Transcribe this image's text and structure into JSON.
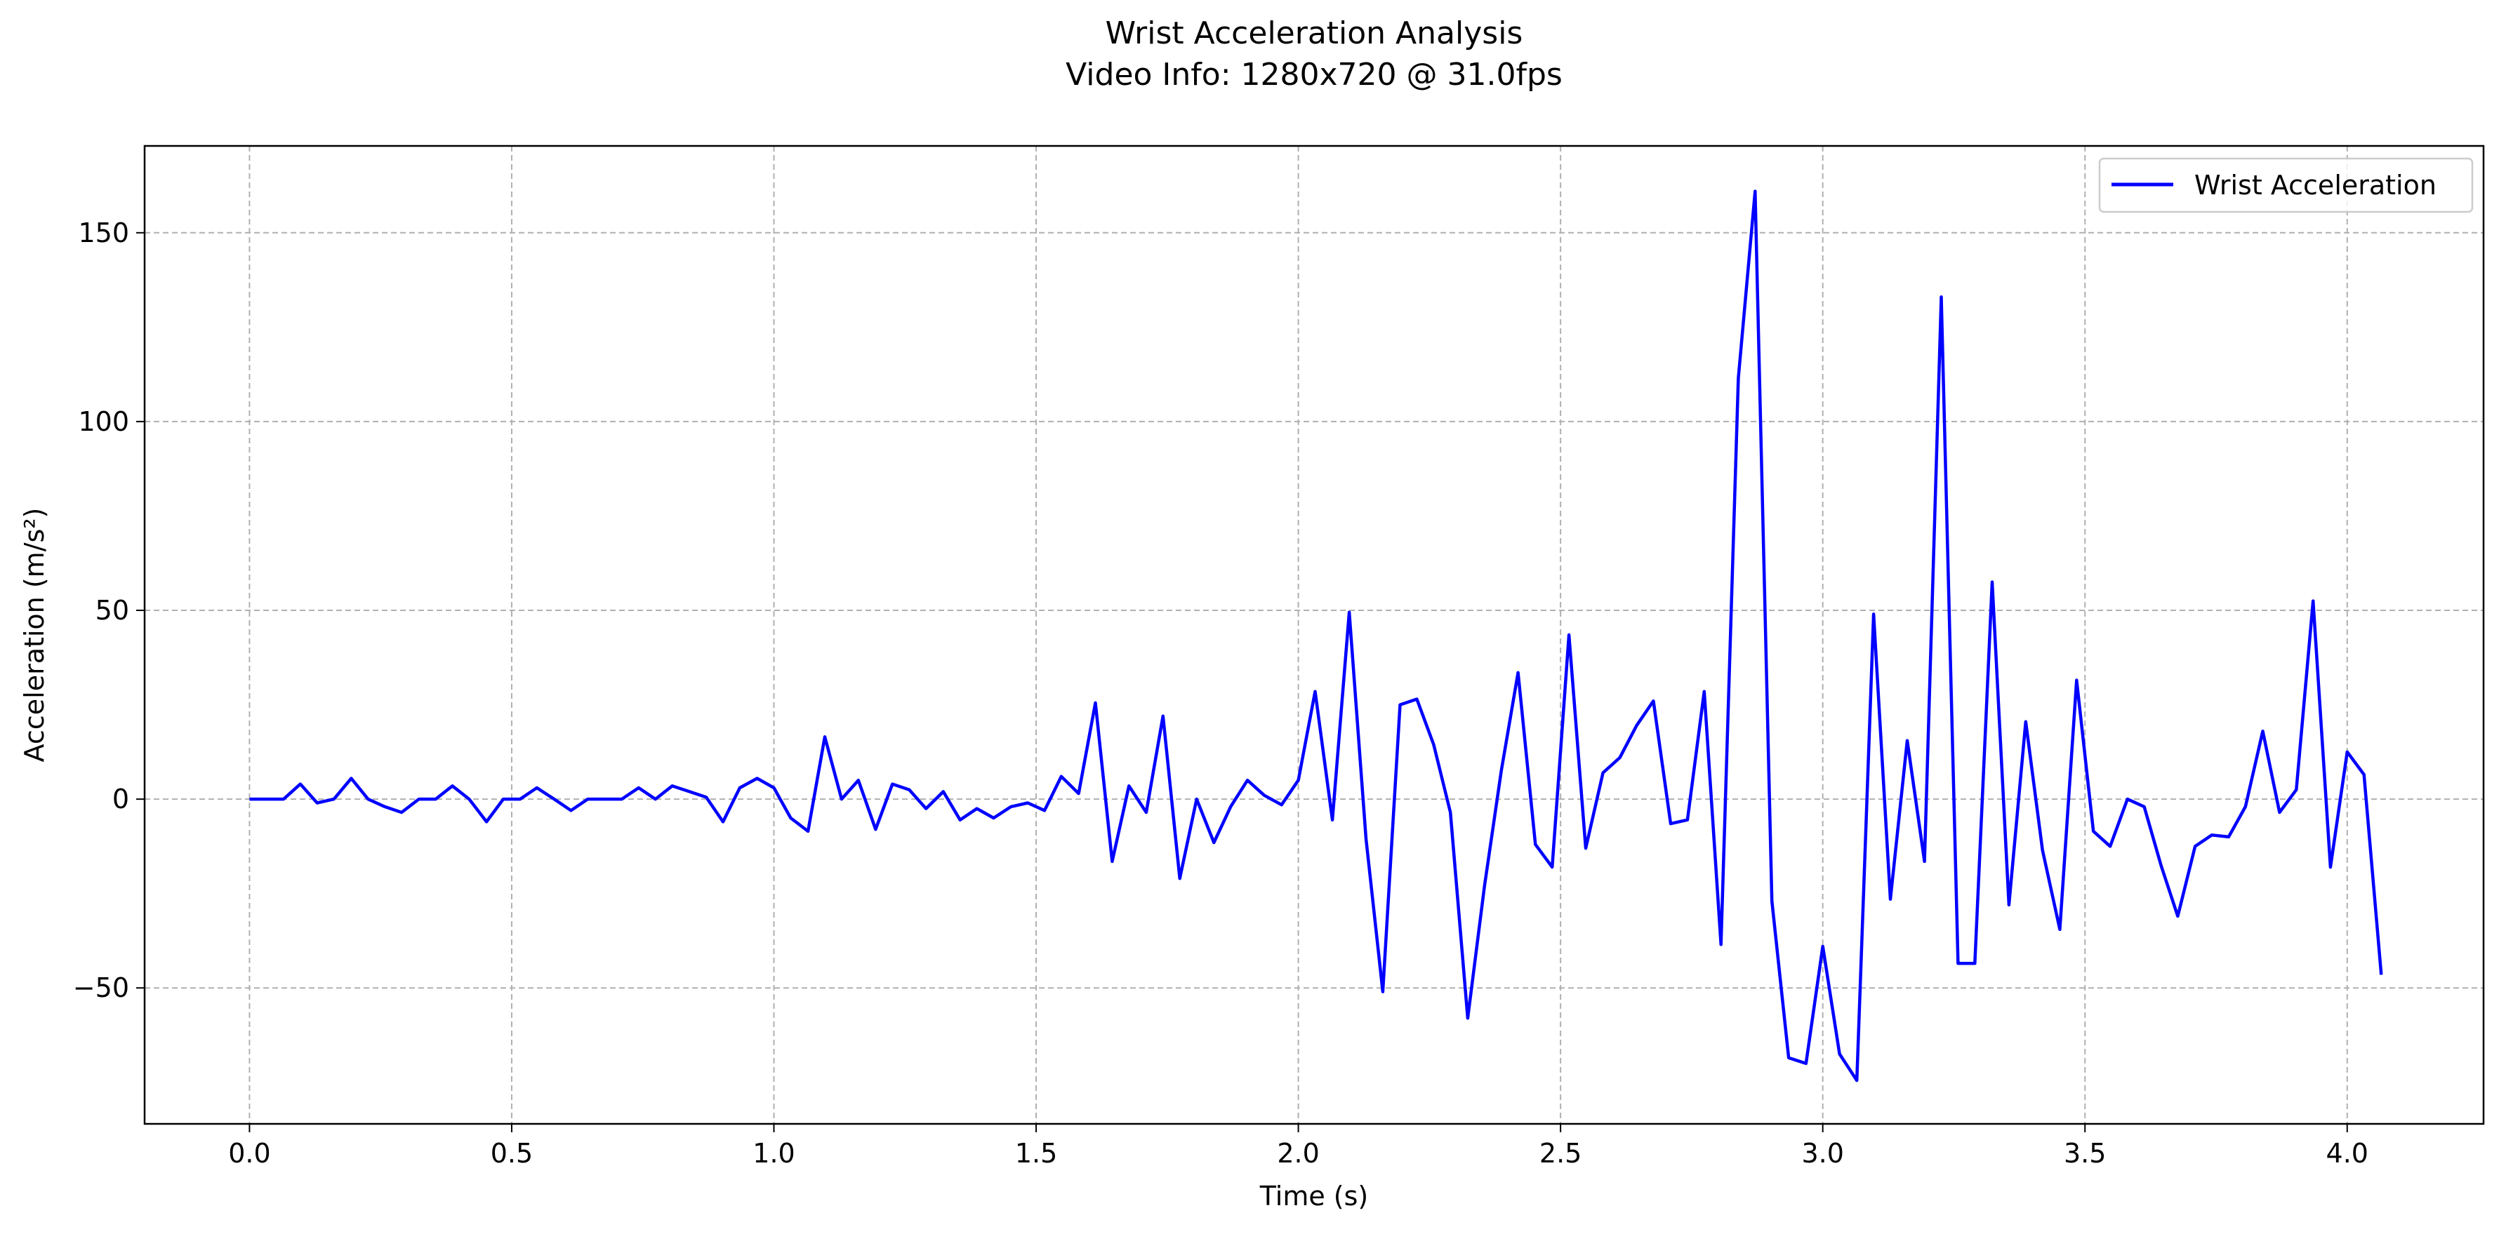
{
  "chart_data": {
    "type": "line",
    "title": "Wrist Acceleration Analysis",
    "subtitle": "Video Info: 1280x720 @ 31.0fps",
    "xlabel": "Time (s)",
    "ylabel": "Acceleration (m/s²)",
    "xlim": [
      -0.2,
      4.26
    ],
    "ylim": [
      -86,
      173
    ],
    "xticks": [
      0.0,
      0.5,
      1.0,
      1.5,
      2.0,
      2.5,
      3.0,
      3.5,
      4.0
    ],
    "xtick_labels": [
      "0.0",
      "0.5",
      "1.0",
      "1.5",
      "2.0",
      "2.5",
      "3.0",
      "3.5",
      "4.0"
    ],
    "yticks": [
      -50,
      0,
      50,
      100,
      150
    ],
    "ytick_labels": [
      "−50",
      "0",
      "50",
      "100",
      "150"
    ],
    "grid": true,
    "legend_position": "upper right",
    "line_color": "#0000ff",
    "grid_color": "#b0b0b0",
    "series": [
      {
        "name": "Wrist Acceleration",
        "x": [
          0.0,
          0.032,
          0.065,
          0.097,
          0.129,
          0.161,
          0.194,
          0.226,
          0.258,
          0.29,
          0.323,
          0.355,
          0.387,
          0.419,
          0.452,
          0.484,
          0.516,
          0.548,
          0.581,
          0.613,
          0.645,
          0.677,
          0.71,
          0.742,
          0.774,
          0.806,
          0.839,
          0.871,
          0.903,
          0.935,
          0.968,
          1.0,
          1.032,
          1.065,
          1.097,
          1.129,
          1.161,
          1.194,
          1.226,
          1.258,
          1.29,
          1.323,
          1.355,
          1.387,
          1.419,
          1.452,
          1.484,
          1.516,
          1.548,
          1.581,
          1.613,
          1.645,
          1.677,
          1.71,
          1.742,
          1.774,
          1.806,
          1.839,
          1.871,
          1.903,
          1.935,
          1.968,
          2.0,
          2.032,
          2.065,
          2.097,
          2.129,
          2.161,
          2.194,
          2.226,
          2.258,
          2.29,
          2.323,
          2.355,
          2.387,
          2.419,
          2.452,
          2.484,
          2.516,
          2.548,
          2.581,
          2.613,
          2.645,
          2.677,
          2.71,
          2.742,
          2.774,
          2.806,
          2.839,
          2.871,
          2.903,
          2.935,
          2.968,
          3.0,
          3.032,
          3.065,
          3.097,
          3.129,
          3.161,
          3.194,
          3.226,
          3.258,
          3.29,
          3.323,
          3.355,
          3.387,
          3.419,
          3.452,
          3.484,
          3.516,
          3.548,
          3.581,
          3.613,
          3.645,
          3.677,
          3.71,
          3.742,
          3.774,
          3.806,
          3.839,
          3.871,
          3.903,
          3.935,
          3.968,
          4.0,
          4.032,
          4.065
        ],
        "y": [
          0,
          0,
          0,
          4,
          -1,
          0,
          5.5,
          0,
          -2,
          -3.5,
          0,
          0,
          3.5,
          0,
          -6,
          0,
          0,
          3,
          0,
          -3,
          0,
          0,
          0,
          3,
          0,
          3.5,
          2,
          0.5,
          -6,
          3,
          5.5,
          3,
          -5,
          -8.5,
          16.5,
          0,
          5,
          -8,
          4,
          2.5,
          -2.5,
          2,
          -5.5,
          -2.5,
          -5,
          -2,
          -1,
          -3,
          6,
          1.5,
          25.5,
          -16.5,
          3.5,
          -3.5,
          22,
          -21,
          0,
          -11.5,
          -2,
          5,
          1,
          -1.5,
          5,
          28.5,
          -5.5,
          49.5,
          -10.5,
          -51,
          25,
          26.5,
          14.5,
          -3.5,
          -58,
          -23,
          7.5,
          33.5,
          -12,
          -18,
          43.5,
          -13,
          7,
          11,
          19.5,
          26,
          -6.5,
          -5.5,
          28.5,
          -38.5,
          111.5,
          161,
          -27,
          -68.5,
          -70,
          -39,
          -67.5,
          -74.5,
          49,
          -26.5,
          15.5,
          -16.5,
          133,
          -43.5,
          -43.5,
          57.5,
          -28,
          20.5,
          -13.5,
          -34.5,
          31.5,
          -8.5,
          -12.5,
          0,
          -2,
          -17.5,
          -31,
          -12.5,
          -9.5,
          -10,
          -2,
          18,
          -3.5,
          2.5,
          52.5,
          -18,
          12.5,
          6.5,
          -46.5
        ]
      }
    ]
  }
}
